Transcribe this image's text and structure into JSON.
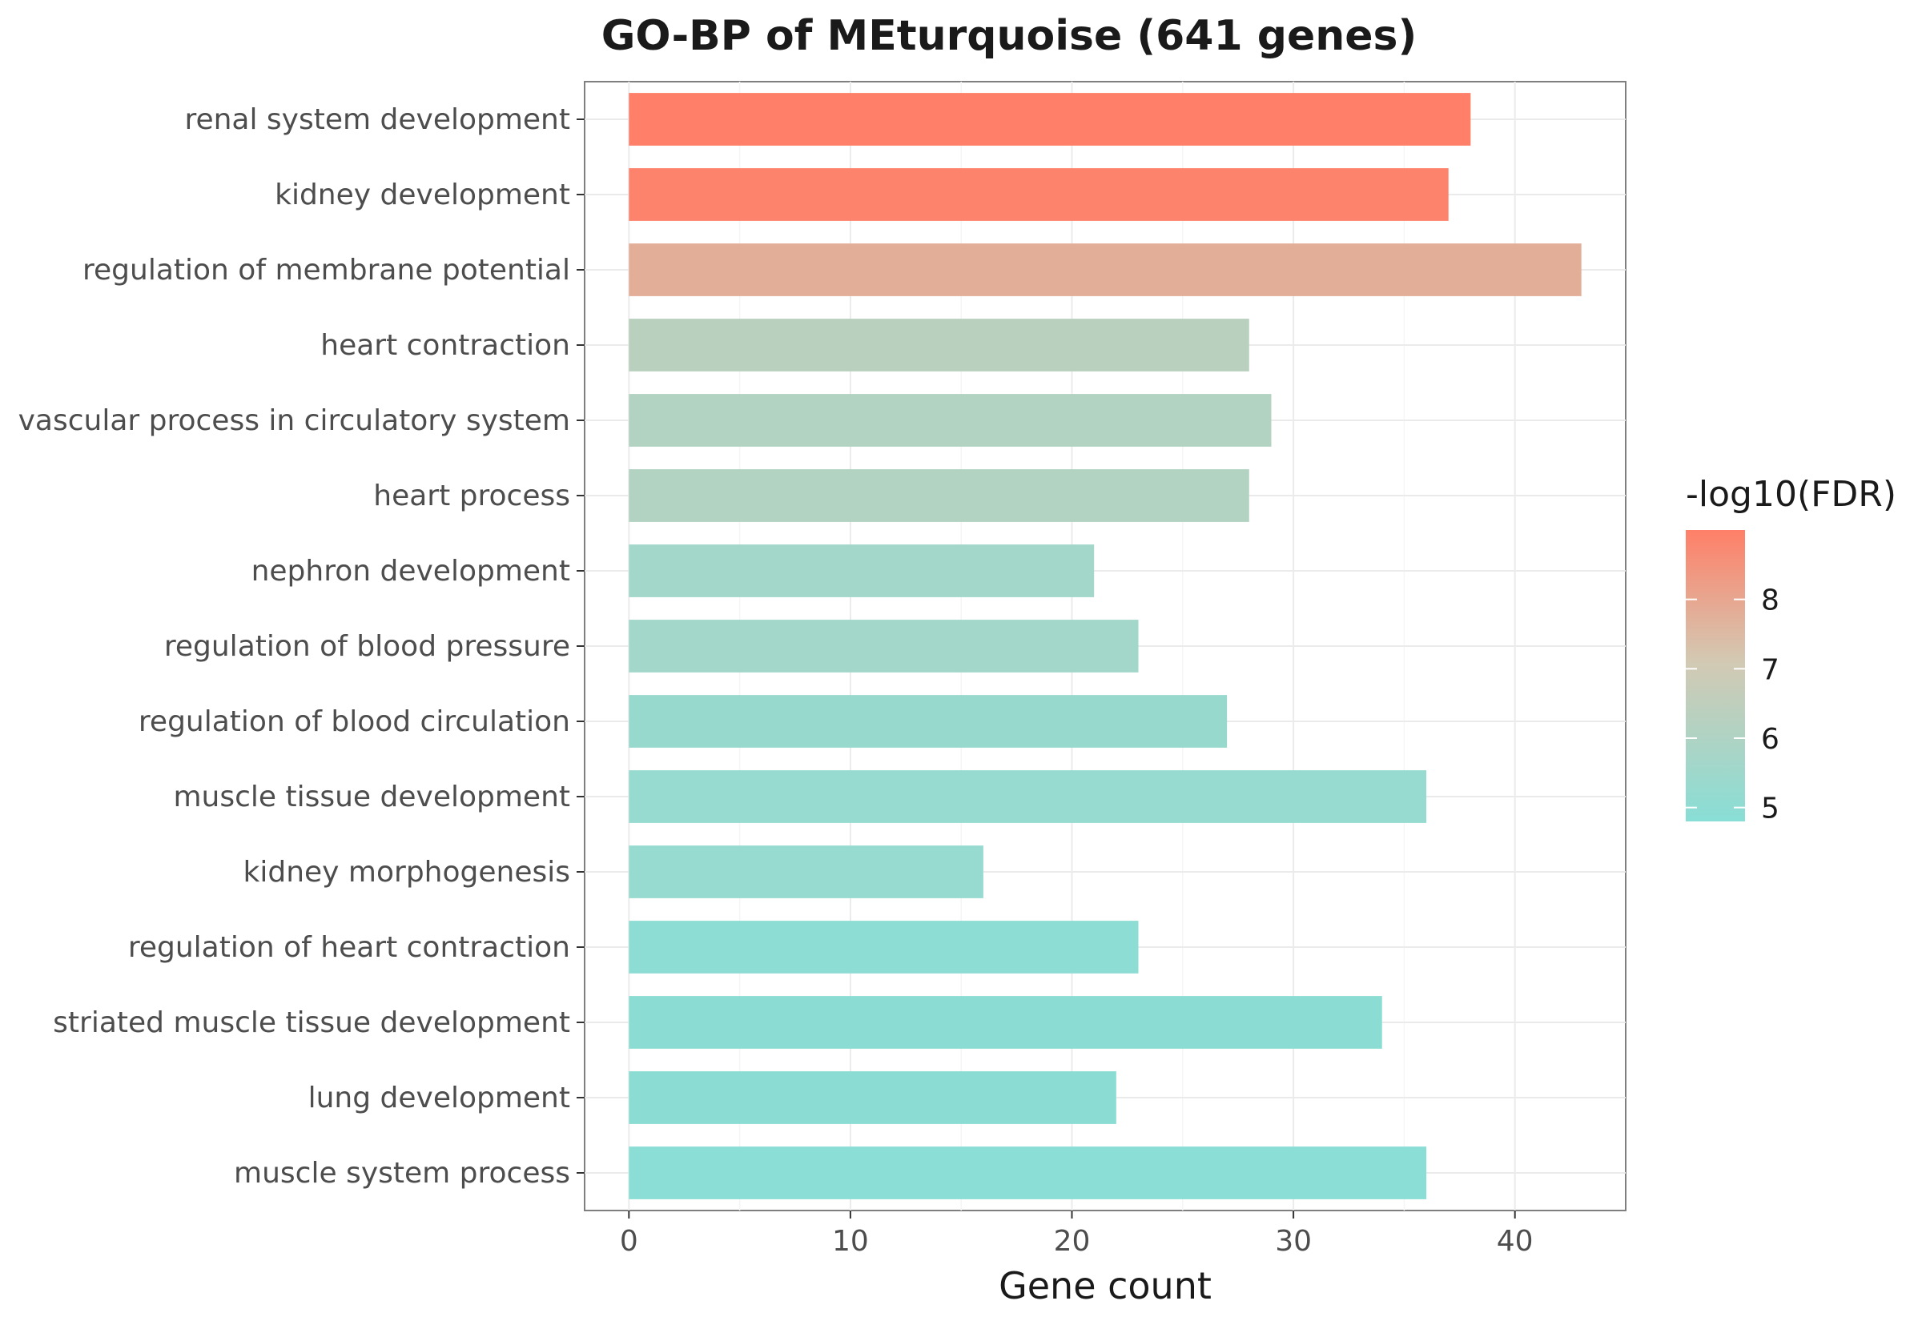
{
  "chart_data": {
    "type": "bar",
    "orientation": "horizontal",
    "title": "GO-BP of MEturquoise (641 genes)",
    "xlabel": "Gene count",
    "ylabel": "",
    "xlim": [
      -2,
      45
    ],
    "x_ticks": [
      0,
      10,
      20,
      30,
      40
    ],
    "grid": true,
    "categories": [
      "renal system development",
      "kidney development",
      "regulation of membrane potential",
      "heart contraction",
      "vascular process in circulatory system",
      "heart process",
      "nephron development",
      "regulation of blood pressure",
      "regulation of blood circulation",
      "muscle tissue development",
      "kidney morphogenesis",
      "regulation of heart contraction",
      "striated muscle tissue development",
      "lung development",
      "muscle system process"
    ],
    "values": [
      38,
      37,
      43,
      28,
      29,
      28,
      21,
      23,
      27,
      36,
      16,
      23,
      34,
      22,
      36
    ],
    "neg_log10_fdr": [
      9.0,
      8.9,
      7.8,
      6.3,
      6.1,
      6.1,
      5.6,
      5.6,
      5.3,
      5.25,
      5.25,
      4.95,
      4.9,
      4.9,
      4.85
    ],
    "legend": {
      "title": "-log10(FDR)",
      "placement": "right",
      "range": [
        4.8,
        9.0
      ],
      "ticks": [
        5,
        6,
        7,
        8
      ],
      "color_low": "#88DED6",
      "color_mid": "#D3C9B3",
      "color_high": "#FF7F68"
    }
  }
}
